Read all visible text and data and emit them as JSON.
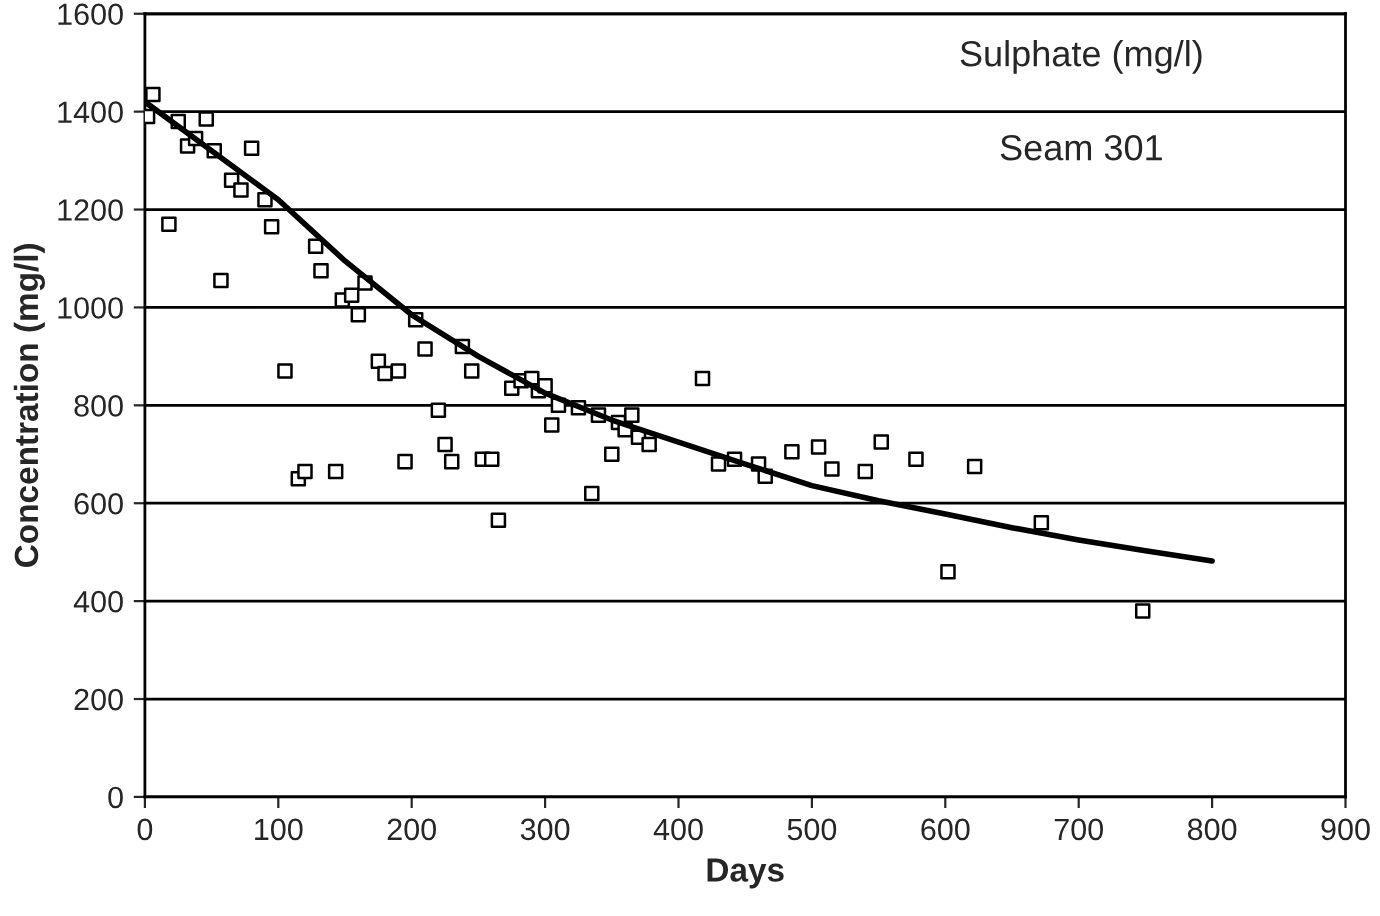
{
  "chart_data": {
    "type": "scatter",
    "xlabel": "Days",
    "ylabel": "Concentration (mg/l)",
    "annotations": [
      "Sulphate (mg/l)",
      "Seam 301"
    ],
    "xlim": [
      0,
      900
    ],
    "xticks": [
      0,
      100,
      200,
      300,
      400,
      500,
      600,
      700,
      800,
      900
    ],
    "ylim": [
      0,
      1600
    ],
    "yticks": [
      0,
      200,
      400,
      600,
      800,
      1000,
      1200,
      1400,
      1600
    ],
    "grid": "y",
    "legend": false,
    "series": [
      {
        "marker": "square",
        "color": "#000000",
        "x": [
          2,
          6,
          18,
          25,
          32,
          38,
          46,
          52,
          57,
          65,
          72,
          80,
          90,
          95,
          105,
          115,
          120,
          128,
          132,
          143,
          148,
          155,
          160,
          165,
          175,
          180,
          190,
          195,
          203,
          210,
          220,
          225,
          230,
          238,
          245,
          253,
          260,
          265,
          275,
          282,
          290,
          295,
          300,
          305,
          310,
          325,
          335,
          340,
          350,
          355,
          360,
          365,
          370,
          378,
          418,
          430,
          442,
          460,
          465,
          485,
          505,
          515,
          540,
          552,
          578,
          602,
          622,
          672,
          748
        ],
        "values": [
          1390,
          1435,
          1170,
          1380,
          1330,
          1345,
          1385,
          1320,
          1055,
          1260,
          1240,
          1325,
          1220,
          1165,
          870,
          650,
          665,
          1125,
          1075,
          665,
          1015,
          1025,
          985,
          1050,
          890,
          865,
          870,
          685,
          975,
          915,
          790,
          720,
          685,
          920,
          870,
          690,
          690,
          565,
          835,
          850,
          855,
          830,
          840,
          760,
          800,
          795,
          620,
          780,
          700,
          765,
          750,
          780,
          735,
          720,
          855,
          680,
          690,
          680,
          655,
          705,
          715,
          670,
          665,
          725,
          690,
          460,
          675,
          560,
          380
        ]
      },
      {
        "type": "line",
        "marker": "none",
        "line_style": "solid",
        "color": "#000000",
        "x": [
          0,
          50,
          100,
          150,
          200,
          250,
          300,
          350,
          400,
          450,
          500,
          550,
          600,
          650,
          700,
          750,
          800
        ],
        "values": [
          1420,
          1320,
          1220,
          1095,
          985,
          900,
          825,
          770,
          725,
          680,
          636,
          605,
          578,
          550,
          525,
          503,
          482
        ]
      }
    ]
  }
}
